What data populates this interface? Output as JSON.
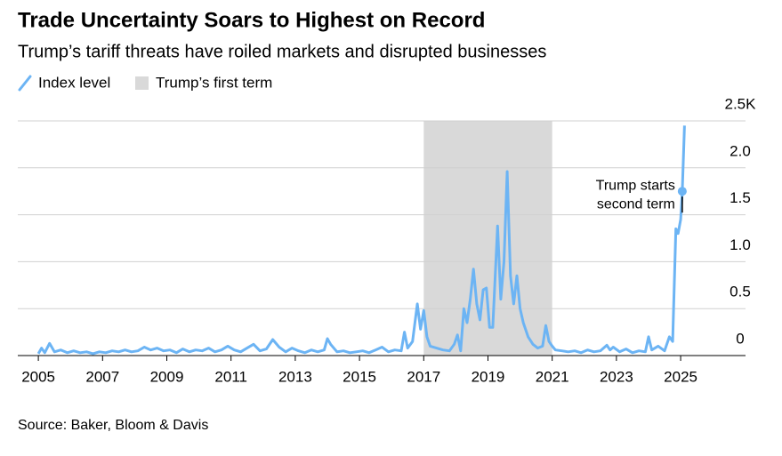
{
  "chart_data": {
    "type": "line",
    "title": "Trade Uncertainty Soars to Highest on Record",
    "subtitle": "Trump’s tariff threats have roiled markets and disrupted businesses",
    "source": "Source: Baker, Bloom & Davis",
    "shaded": {
      "name": "Trump’s first term",
      "x": [
        2017,
        2021
      ],
      "color": "#d9d9d9"
    },
    "xlim": [
      2004.36,
      2027.02
    ],
    "xticks": [
      2005,
      2007,
      2009,
      2011,
      2013,
      2015,
      2017,
      2019,
      2021,
      2023,
      2025
    ],
    "ylim": [
      0,
      2.5
    ],
    "yticks": [
      0,
      0.5,
      {
        "value": 1.0,
        "label": "1.0"
      },
      1.5,
      {
        "value": 2.0,
        "label": "2.0"
      },
      {
        "value": 2.5,
        "label": "2.5K"
      }
    ],
    "grid": true,
    "annotations": [
      {
        "lines": [
          "Trump starts",
          "second term"
        ],
        "x": 2025.05,
        "y": 1.75
      }
    ],
    "series": [
      {
        "name": "Index level",
        "color": "#6cb4f4",
        "x": [
          2005.0,
          2005.1,
          2005.2,
          2005.35,
          2005.5,
          2005.7,
          2005.9,
          2006.1,
          2006.3,
          2006.5,
          2006.7,
          2006.9,
          2007.1,
          2007.3,
          2007.5,
          2007.7,
          2007.9,
          2008.1,
          2008.3,
          2008.5,
          2008.7,
          2008.9,
          2009.1,
          2009.3,
          2009.5,
          2009.7,
          2009.9,
          2010.1,
          2010.3,
          2010.5,
          2010.7,
          2010.9,
          2011.1,
          2011.3,
          2011.5,
          2011.7,
          2011.9,
          2012.1,
          2012.3,
          2012.5,
          2012.7,
          2012.9,
          2013.1,
          2013.3,
          2013.5,
          2013.7,
          2013.9,
          2014.0,
          2014.1,
          2014.3,
          2014.5,
          2014.7,
          2014.9,
          2015.1,
          2015.3,
          2015.5,
          2015.7,
          2015.9,
          2016.1,
          2016.3,
          2016.4,
          2016.5,
          2016.65,
          2016.8,
          2016.9,
          2017.0,
          2017.1,
          2017.2,
          2017.4,
          2017.6,
          2017.8,
          2017.95,
          2018.05,
          2018.15,
          2018.25,
          2018.35,
          2018.45,
          2018.55,
          2018.65,
          2018.75,
          2018.85,
          2018.95,
          2019.05,
          2019.15,
          2019.3,
          2019.4,
          2019.5,
          2019.6,
          2019.7,
          2019.8,
          2019.9,
          2020.0,
          2020.1,
          2020.25,
          2020.4,
          2020.55,
          2020.7,
          2020.8,
          2020.9,
          2021.0,
          2021.1,
          2021.3,
          2021.5,
          2021.7,
          2021.9,
          2022.1,
          2022.3,
          2022.5,
          2022.7,
          2022.8,
          2022.9,
          2023.1,
          2023.3,
          2023.5,
          2023.7,
          2023.9,
          2024.0,
          2024.1,
          2024.3,
          2024.5,
          2024.65,
          2024.75,
          2024.85,
          2024.92,
          2025.0,
          2025.05,
          2025.12
        ],
        "values": [
          0.02,
          0.08,
          0.03,
          0.13,
          0.04,
          0.06,
          0.03,
          0.05,
          0.03,
          0.04,
          0.02,
          0.04,
          0.03,
          0.05,
          0.04,
          0.06,
          0.04,
          0.05,
          0.09,
          0.06,
          0.08,
          0.05,
          0.06,
          0.03,
          0.07,
          0.04,
          0.06,
          0.05,
          0.08,
          0.04,
          0.06,
          0.1,
          0.06,
          0.04,
          0.08,
          0.12,
          0.05,
          0.07,
          0.17,
          0.09,
          0.04,
          0.08,
          0.05,
          0.03,
          0.06,
          0.04,
          0.06,
          0.18,
          0.12,
          0.04,
          0.05,
          0.03,
          0.04,
          0.05,
          0.03,
          0.06,
          0.09,
          0.04,
          0.06,
          0.05,
          0.25,
          0.08,
          0.15,
          0.55,
          0.28,
          0.48,
          0.2,
          0.1,
          0.08,
          0.06,
          0.05,
          0.12,
          0.22,
          0.05,
          0.5,
          0.35,
          0.6,
          0.92,
          0.55,
          0.38,
          0.7,
          0.72,
          0.3,
          0.3,
          1.38,
          0.6,
          1.0,
          1.96,
          0.85,
          0.55,
          0.85,
          0.5,
          0.35,
          0.2,
          0.12,
          0.08,
          0.1,
          0.32,
          0.15,
          0.1,
          0.06,
          0.05,
          0.04,
          0.05,
          0.03,
          0.06,
          0.04,
          0.05,
          0.11,
          0.06,
          0.09,
          0.04,
          0.07,
          0.03,
          0.05,
          0.04,
          0.2,
          0.06,
          0.1,
          0.05,
          0.2,
          0.15,
          1.35,
          1.3,
          1.45,
          1.75,
          2.45
        ]
      }
    ]
  }
}
